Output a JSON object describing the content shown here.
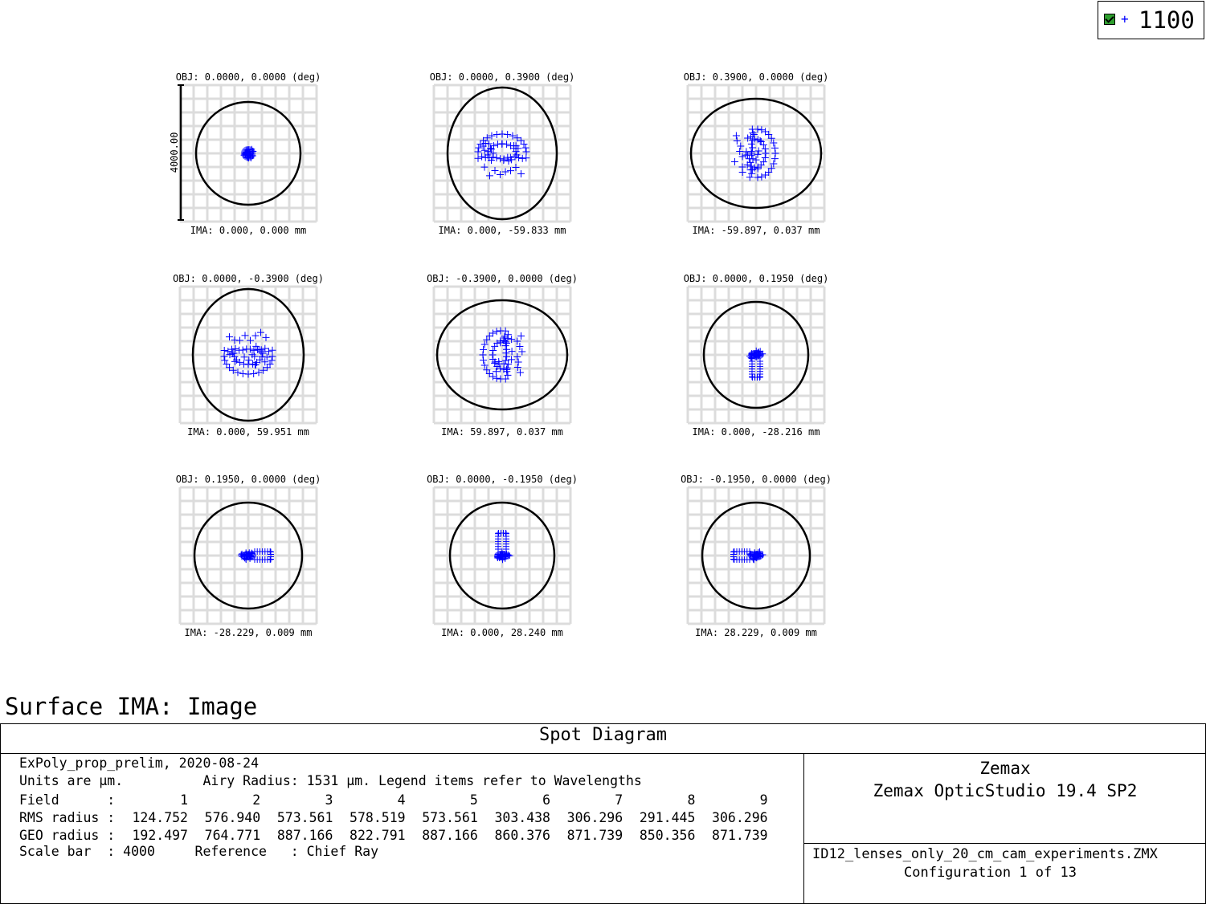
{
  "legend": {
    "label": "1100",
    "color": "#0000ff"
  },
  "chart_data": {
    "type": "scatter",
    "scale_bar_label": "4000.00",
    "grid": true,
    "fields": [
      {
        "obj": "OBJ: 0.0000, 0.0000 (deg)",
        "ima": "IMA: 0.000, 0.000 mm",
        "shape": "dot",
        "ring_rx": 65,
        "ring_ry": 64
      },
      {
        "obj": "OBJ: 0.0000, 0.3900 (deg)",
        "ima": "IMA: 0.000, -59.833 mm",
        "shape": "dome",
        "ring_rx": 68,
        "ring_ry": 82
      },
      {
        "obj": "OBJ: 0.3900, 0.0000 (deg)",
        "ima": "IMA: -59.897, 0.037 mm",
        "shape": "dome_r",
        "ring_rx": 81,
        "ring_ry": 68
      },
      {
        "obj": "OBJ: 0.0000, -0.3900 (deg)",
        "ima": "IMA: 0.000, 59.951 mm",
        "shape": "dome_d",
        "ring_rx": 69,
        "ring_ry": 82
      },
      {
        "obj": "OBJ: -0.3900, 0.0000 (deg)",
        "ima": "IMA: 59.897, 0.037 mm",
        "shape": "dome_l",
        "ring_rx": 81,
        "ring_ry": 68
      },
      {
        "obj": "OBJ: 0.0000, 0.1950 (deg)",
        "ima": "IMA: 0.000, -28.216 mm",
        "shape": "blob_up",
        "ring_rx": 65,
        "ring_ry": 66
      },
      {
        "obj": "OBJ: 0.1950, 0.0000 (deg)",
        "ima": "IMA: -28.229, 0.009 mm",
        "shape": "blob_left",
        "ring_rx": 67,
        "ring_ry": 66
      },
      {
        "obj": "OBJ: 0.0000, -0.1950 (deg)",
        "ima": "IMA: 0.000, 28.240 mm",
        "shape": "blob_down",
        "ring_rx": 65,
        "ring_ry": 66
      },
      {
        "obj": "OBJ: -0.1950, 0.0000 (deg)",
        "ima": "IMA: 28.229, 0.009 mm",
        "shape": "blob_right",
        "ring_rx": 67,
        "ring_ry": 66
      }
    ]
  },
  "surface_title": "Surface IMA: Image",
  "frame": {
    "title": "Spot Diagram",
    "line1": "ExPoly_prop_prelim, 2020-08-24",
    "line2": "Units are µm.          Airy Radius: 1531 µm. Legend items refer to Wavelengths",
    "table": {
      "field_label": "Field      :",
      "rms_label": "RMS radius :",
      "geo_label": "GEO radius :",
      "fields": [
        "1",
        "2",
        "3",
        "4",
        "5",
        "6",
        "7",
        "8",
        "9"
      ],
      "rms": [
        "124.752",
        "576.940",
        "573.561",
        "578.519",
        "573.561",
        "303.438",
        "306.296",
        "291.445",
        "306.296"
      ],
      "geo": [
        "192.497",
        "764.771",
        "887.166",
        "822.791",
        "887.166",
        "860.376",
        "871.739",
        "850.356",
        "871.739"
      ]
    },
    "scale_line": "Scale bar  : 4000     Reference   : Chief Ray",
    "company": "Zemax",
    "product": "Zemax OpticStudio 19.4 SP2",
    "file_name": "ID12_lenses_only_20_cm_cam_experiments.ZMX",
    "config": "Configuration 1 of 13"
  }
}
